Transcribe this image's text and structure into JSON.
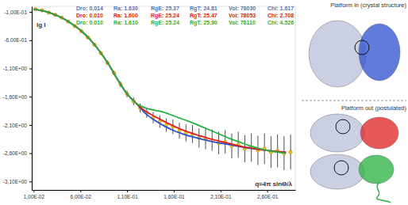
{
  "chart_data": {
    "type": "line",
    "x_label": "q=4π sinΘ/λ",
    "y_label": "lg I",
    "xlim": [
      0.008,
      0.29
    ],
    "ylim": [
      -3.25,
      0.0
    ],
    "xticks": [
      {
        "value": 0.01,
        "label": "1,00E-02"
      },
      {
        "value": 0.06,
        "label": "6,00E-02"
      },
      {
        "value": 0.11,
        "label": "1,10E-01"
      },
      {
        "value": 0.16,
        "label": "1,60E-01"
      },
      {
        "value": 0.21,
        "label": "2,10E-01"
      },
      {
        "value": 0.26,
        "label": "2,60E-01"
      }
    ],
    "yticks": [
      {
        "value": -0.1,
        "label": "-1,00E-01"
      },
      {
        "value": -0.6,
        "label": "-6,00E-01"
      },
      {
        "value": -1.1,
        "label": "-1,10E+00"
      },
      {
        "value": -1.6,
        "label": "-1,60E+00"
      },
      {
        "value": -2.1,
        "label": "-2,10E+00"
      },
      {
        "value": -2.6,
        "label": "-2,60E+00"
      },
      {
        "value": -3.1,
        "label": "-3,10E+00"
      }
    ],
    "grid": false,
    "series": [
      {
        "type": "scatter",
        "marker": "circle",
        "color": "#f2c21b",
        "x": [
          0.012,
          0.019,
          0.026,
          0.033,
          0.04,
          0.047,
          0.054,
          0.061,
          0.068,
          0.075,
          0.082,
          0.089,
          0.096,
          0.103,
          0.11,
          0.117,
          0.124,
          0.131,
          0.138,
          0.145,
          0.152,
          0.159,
          0.166,
          0.173,
          0.18,
          0.187,
          0.194,
          0.201,
          0.208,
          0.215,
          0.222,
          0.229,
          0.236,
          0.243,
          0.25,
          0.257,
          0.264,
          0.271,
          0.278,
          0.285
        ],
        "values": [
          -0.05,
          -0.07,
          -0.11,
          -0.15,
          -0.2,
          -0.27,
          -0.35,
          -0.44,
          -0.55,
          -0.68,
          -0.83,
          -1.0,
          -1.18,
          -1.38,
          -1.55,
          -1.68,
          -1.8,
          -1.88,
          -1.97,
          -2.04,
          -2.1,
          -2.13,
          -2.2,
          -2.24,
          -2.26,
          -2.33,
          -2.35,
          -2.37,
          -2.42,
          -2.4,
          -2.47,
          -2.45,
          -2.52,
          -2.5,
          -2.55,
          -2.52,
          -2.58,
          -2.56,
          -2.6,
          -2.58
        ],
        "errors": [
          0.01,
          0.01,
          0.01,
          0.01,
          0.01,
          0.02,
          0.02,
          0.02,
          0.02,
          0.03,
          0.03,
          0.04,
          0.04,
          0.05,
          0.06,
          0.07,
          0.08,
          0.09,
          0.1,
          0.11,
          0.12,
          0.13,
          0.14,
          0.15,
          0.16,
          0.17,
          0.18,
          0.19,
          0.2,
          0.21,
          0.22,
          0.23,
          0.24,
          0.25,
          0.26,
          0.27,
          0.28,
          0.29,
          0.3,
          0.31
        ]
      },
      {
        "type": "line",
        "line_style": "solid",
        "color": "#2b4fd0",
        "x": [
          0.01,
          0.02,
          0.03,
          0.04,
          0.05,
          0.06,
          0.07,
          0.08,
          0.09,
          0.1,
          0.11,
          0.12,
          0.13,
          0.14,
          0.15,
          0.16,
          0.17,
          0.18,
          0.19,
          0.2,
          0.21,
          0.22,
          0.23,
          0.24,
          0.25,
          0.26,
          0.27,
          0.28
        ],
        "values": [
          -0.05,
          -0.08,
          -0.13,
          -0.2,
          -0.3,
          -0.42,
          -0.58,
          -0.78,
          -1.02,
          -1.3,
          -1.55,
          -1.72,
          -1.9,
          -2.02,
          -2.12,
          -2.2,
          -2.26,
          -2.31,
          -2.35,
          -2.39,
          -2.42,
          -2.45,
          -2.48,
          -2.51,
          -2.53,
          -2.55,
          -2.57,
          -2.59
        ]
      },
      {
        "type": "line",
        "line_style": "solid",
        "color": "#e02020",
        "x": [
          0.01,
          0.02,
          0.03,
          0.04,
          0.05,
          0.06,
          0.07,
          0.08,
          0.09,
          0.1,
          0.11,
          0.12,
          0.13,
          0.14,
          0.15,
          0.16,
          0.17,
          0.18,
          0.19,
          0.2,
          0.21,
          0.22,
          0.23,
          0.24,
          0.25,
          0.26,
          0.27,
          0.28
        ],
        "values": [
          -0.05,
          -0.08,
          -0.13,
          -0.2,
          -0.3,
          -0.42,
          -0.58,
          -0.78,
          -1.02,
          -1.3,
          -1.55,
          -1.72,
          -1.86,
          -1.95,
          -2.04,
          -2.12,
          -2.19,
          -2.25,
          -2.3,
          -2.35,
          -2.39,
          -2.43,
          -2.47,
          -2.5,
          -2.53,
          -2.55,
          -2.57,
          -2.58
        ]
      },
      {
        "type": "line",
        "line_style": "solid",
        "color": "#27b040",
        "x": [
          0.01,
          0.02,
          0.03,
          0.04,
          0.05,
          0.06,
          0.07,
          0.08,
          0.09,
          0.1,
          0.11,
          0.12,
          0.13,
          0.14,
          0.15,
          0.16,
          0.17,
          0.18,
          0.19,
          0.2,
          0.21,
          0.22,
          0.23,
          0.24,
          0.25,
          0.26,
          0.27,
          0.28
        ],
        "values": [
          -0.05,
          -0.08,
          -0.13,
          -0.2,
          -0.3,
          -0.42,
          -0.58,
          -0.78,
          -1.02,
          -1.3,
          -1.55,
          -1.72,
          -1.8,
          -1.84,
          -1.88,
          -1.94,
          -2.0,
          -2.06,
          -2.13,
          -2.2,
          -2.27,
          -2.34,
          -2.4,
          -2.46,
          -2.51,
          -2.55,
          -2.58,
          -2.6
        ]
      }
    ],
    "annotations": [
      {
        "color": "#4a78b8",
        "entries": [
          {
            "label": "Dro:",
            "value": "0.014"
          },
          {
            "label": "Ra:",
            "value": "1.630"
          },
          {
            "label": "RgE:",
            "value": "25.37"
          },
          {
            "label": "RgT:",
            "value": "24.81"
          },
          {
            "label": "Vol:",
            "value": "78030"
          },
          {
            "label": "Chi:",
            "value": "1.617"
          }
        ]
      },
      {
        "color": "#e02020",
        "entries": [
          {
            "label": "Dro:",
            "value": "0.010"
          },
          {
            "label": "Ra:",
            "value": "1.600"
          },
          {
            "label": "RgE:",
            "value": "25.24"
          },
          {
            "label": "RgT:",
            "value": "25.47"
          },
          {
            "label": "Vol:",
            "value": "78053"
          },
          {
            "label": "Chi:",
            "value": "2.708"
          }
        ]
      },
      {
        "color": "#27b040",
        "entries": [
          {
            "label": "Dro:",
            "value": "0.010"
          },
          {
            "label": "Ra:",
            "value": "1.610"
          },
          {
            "label": "RgE:",
            "value": "25.24"
          },
          {
            "label": "RgT:",
            "value": "25.90"
          },
          {
            "label": "Vol:",
            "value": "78110"
          },
          {
            "label": "Chi:",
            "value": "4.526"
          }
        ]
      }
    ],
    "side_labels": [
      "Platform in (crystal structure)",
      "Platform out (postulated)"
    ]
  }
}
